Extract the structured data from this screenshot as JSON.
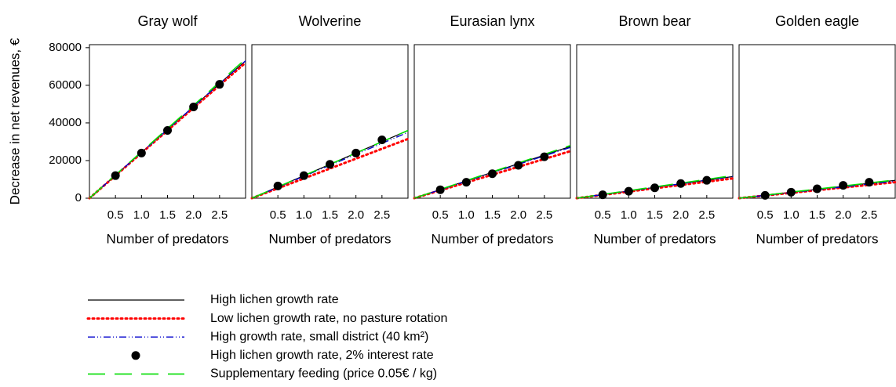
{
  "chart_data": [
    {
      "type": "line",
      "title": "Gray wolf",
      "ylabel": "Decrease in net revenues, €",
      "xlabel": "Number of predators",
      "x": [
        0,
        0.5,
        1,
        1.5,
        2,
        2.5,
        3
      ],
      "xlim": [
        0,
        3
      ],
      "xticks": [
        0.5,
        {
          "value": 1,
          "label": "1.0"
        },
        1.5,
        {
          "value": 2,
          "label": "2.0"
        },
        2.5
      ],
      "ylim": [
        0,
        81600
      ],
      "yticks": [
        0,
        20000,
        40000,
        60000,
        80000
      ],
      "series": [
        {
          "name": "High lichen growth rate",
          "color": "#000000",
          "style": "solid",
          "values": [
            0,
            12167,
            24333,
            36500,
            48667,
            60833,
            73000
          ]
        },
        {
          "name": "Low lichen growth rate, no pasture rotation",
          "color": "#ff0000",
          "style": "dotted",
          "values": [
            0,
            12000,
            24000,
            36000,
            48000,
            60000,
            72000
          ]
        },
        {
          "name": "High growth rate, small district (40 km²)",
          "color": "#0000cc",
          "style": "dashdot",
          "values": [
            0,
            12167,
            24333,
            36500,
            48667,
            60833,
            73000
          ]
        },
        {
          "name": "High lichen growth rate, 2% interest rate",
          "color": "#000000",
          "style": "marker",
          "values": [
            null,
            12000,
            24000,
            36000,
            48500,
            60500,
            null
          ]
        },
        {
          "name": "Supplementary feeding (price 0.05€ / kg)",
          "color": "#00dd00",
          "style": "dashed",
          "values": [
            0,
            12333,
            24667,
            37000,
            49333,
            61667,
            74000
          ]
        }
      ]
    },
    {
      "type": "line",
      "title": "Wolverine",
      "xlabel": "Number of predators",
      "x": [
        0,
        0.5,
        1,
        1.5,
        2,
        2.5,
        3
      ],
      "xlim": [
        0,
        3
      ],
      "xticks": [
        0.5,
        {
          "value": 1,
          "label": "1.0"
        },
        1.5,
        {
          "value": 2,
          "label": "2.0"
        },
        2.5
      ],
      "ylim": [
        0,
        81600
      ],
      "series": [
        {
          "color": "#000000",
          "style": "solid",
          "values": [
            0,
            6000,
            12000,
            18000,
            24000,
            30000,
            36000
          ]
        },
        {
          "color": "#ff0000",
          "style": "dotted",
          "values": [
            0,
            5250,
            10500,
            15750,
            21000,
            26250,
            31500
          ]
        },
        {
          "color": "#0000cc",
          "style": "dashdot",
          "values": [
            0,
            5833,
            11667,
            17500,
            23333,
            29167,
            35000
          ]
        },
        {
          "color": "#000000",
          "style": "marker",
          "values": [
            null,
            6500,
            12000,
            18000,
            24000,
            31000,
            null
          ]
        },
        {
          "color": "#00dd00",
          "style": "dashed",
          "values": [
            0,
            6000,
            12000,
            18000,
            24000,
            30000,
            36000
          ]
        }
      ]
    },
    {
      "type": "line",
      "title": "Eurasian lynx",
      "xlabel": "Number of predators",
      "x": [
        0,
        0.5,
        1,
        1.5,
        2,
        2.5,
        3
      ],
      "xlim": [
        0,
        3
      ],
      "xticks": [
        0.5,
        {
          "value": 1,
          "label": "1.0"
        },
        1.5,
        {
          "value": 2,
          "label": "2.0"
        },
        2.5
      ],
      "ylim": [
        0,
        81600
      ],
      "series": [
        {
          "color": "#000000",
          "style": "solid",
          "values": [
            0,
            4583,
            9167,
            13750,
            18333,
            22917,
            27500
          ]
        },
        {
          "color": "#ff0000",
          "style": "dotted",
          "values": [
            0,
            4167,
            8333,
            12500,
            16667,
            20833,
            25000
          ]
        },
        {
          "color": "#0000cc",
          "style": "dashdot",
          "values": [
            0,
            4500,
            9000,
            13500,
            18000,
            22500,
            27000
          ]
        },
        {
          "color": "#000000",
          "style": "marker",
          "values": [
            null,
            4500,
            8500,
            13000,
            17500,
            22000,
            null
          ]
        },
        {
          "color": "#00dd00",
          "style": "dashed",
          "values": [
            0,
            4667,
            9333,
            14000,
            18667,
            23333,
            28000
          ]
        }
      ]
    },
    {
      "type": "line",
      "title": "Brown bear",
      "xlabel": "Number of predators",
      "x": [
        0,
        0.5,
        1,
        1.5,
        2,
        2.5,
        3
      ],
      "xlim": [
        0,
        3
      ],
      "xticks": [
        0.5,
        {
          "value": 1,
          "label": "1.0"
        },
        1.5,
        {
          "value": 2,
          "label": "2.0"
        },
        2.5
      ],
      "ylim": [
        0,
        81600
      ],
      "series": [
        {
          "color": "#000000",
          "style": "solid",
          "values": [
            0,
            1917,
            3833,
            5750,
            7667,
            9583,
            11500
          ]
        },
        {
          "color": "#ff0000",
          "style": "dotted",
          "values": [
            0,
            1750,
            3500,
            5250,
            7000,
            8750,
            10500
          ]
        },
        {
          "color": "#0000cc",
          "style": "dashdot",
          "values": [
            0,
            1917,
            3833,
            5750,
            7667,
            9583,
            11500
          ]
        },
        {
          "color": "#000000",
          "style": "marker",
          "values": [
            null,
            1800,
            3700,
            5500,
            7800,
            9500,
            null
          ]
        },
        {
          "color": "#00dd00",
          "style": "dashed",
          "values": [
            0,
            2000,
            4000,
            6000,
            8000,
            10000,
            12000
          ]
        }
      ]
    },
    {
      "type": "line",
      "title": "Golden eagle",
      "xlabel": "Number of predators",
      "x": [
        0,
        0.5,
        1,
        1.5,
        2,
        2.5,
        3
      ],
      "xlim": [
        0,
        3
      ],
      "xticks": [
        0.5,
        {
          "value": 1,
          "label": "1.0"
        },
        1.5,
        {
          "value": 2,
          "label": "2.0"
        },
        2.5
      ],
      "ylim": [
        0,
        81600
      ],
      "series": [
        {
          "color": "#000000",
          "style": "solid",
          "values": [
            0,
            1583,
            3167,
            4750,
            6333,
            7917,
            9500
          ]
        },
        {
          "color": "#ff0000",
          "style": "dotted",
          "values": [
            0,
            1417,
            2833,
            4250,
            5667,
            7083,
            8500
          ]
        },
        {
          "color": "#0000cc",
          "style": "dashdot",
          "values": [
            0,
            1500,
            3000,
            4500,
            6000,
            7500,
            9000
          ]
        },
        {
          "color": "#000000",
          "style": "marker",
          "values": [
            null,
            1500,
            3200,
            5000,
            6800,
            8500,
            null
          ]
        },
        {
          "color": "#00dd00",
          "style": "dashed",
          "values": [
            0,
            1617,
            3233,
            4850,
            6467,
            8083,
            9700
          ]
        }
      ]
    }
  ]
}
